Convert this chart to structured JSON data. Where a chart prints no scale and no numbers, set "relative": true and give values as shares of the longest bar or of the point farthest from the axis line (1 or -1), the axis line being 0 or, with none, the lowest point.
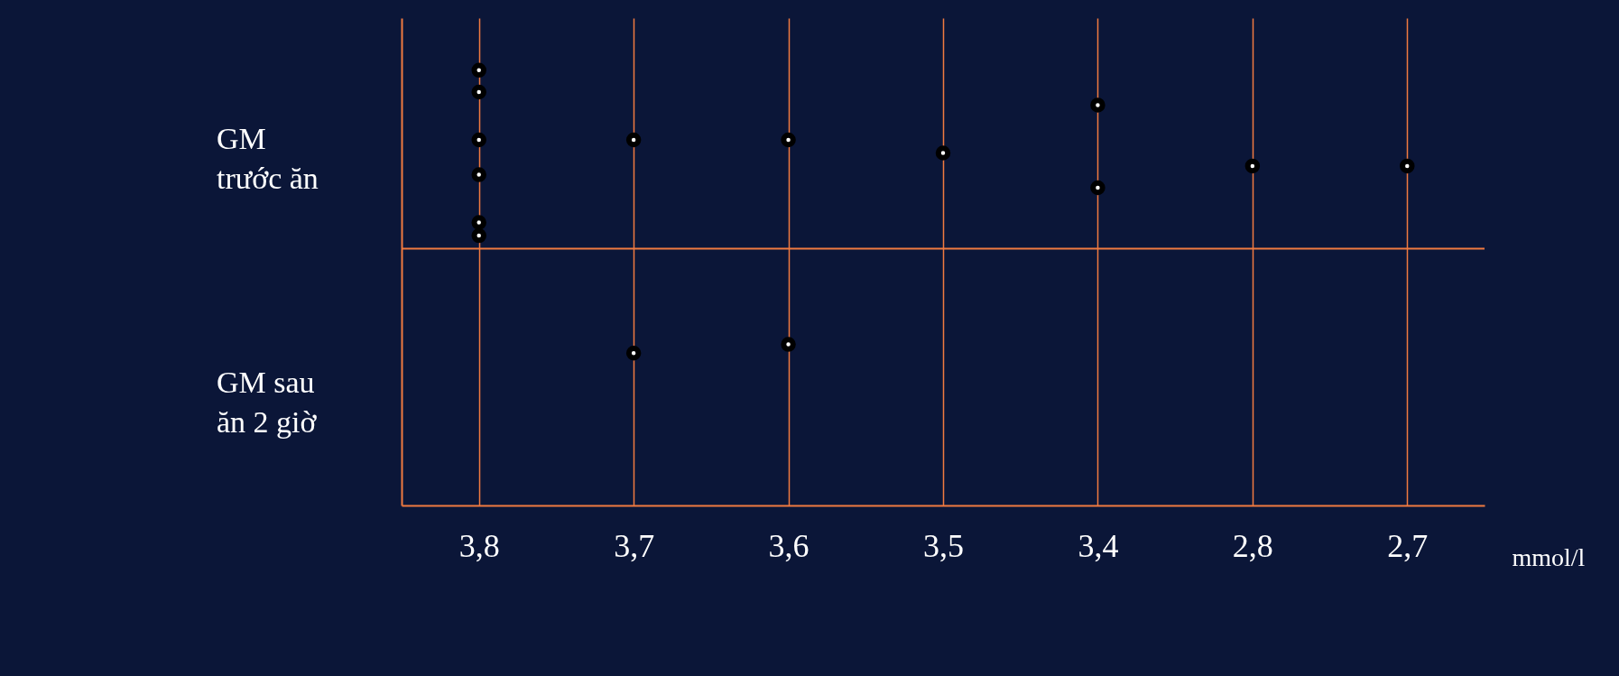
{
  "chart_data": {
    "type": "scatter",
    "relative": true,
    "categories": [
      "3,8",
      "3,7",
      "3,6",
      "3,5",
      "3,4",
      "2,8",
      "2,7"
    ],
    "xlabel": "mmol/l",
    "grid": "x",
    "marker": "circle",
    "series": [
      {
        "color": "#ffffff",
        "x": [
          "3,8",
          "3,8",
          "3,8",
          "3,8",
          "3,8",
          "3,8",
          "3,7",
          "3,7",
          "3,6",
          "3,6",
          "3,5",
          "3,4",
          "3,4",
          "2,8",
          "2,7"
        ],
        "values": [
          0.95,
          1.0,
          0.84,
          0.76,
          0.62,
          0.65,
          0.84,
          0.35,
          0.84,
          0.37,
          0.81,
          0.73,
          0.92,
          0.78,
          0.78
        ]
      }
    ],
    "ref_lines": [
      {
        "axis": "y",
        "value": 0.59,
        "color": "#f07a40"
      }
    ],
    "annotations": [
      "GM trước ăn",
      "GM sau ăn 2 giờ"
    ]
  }
}
